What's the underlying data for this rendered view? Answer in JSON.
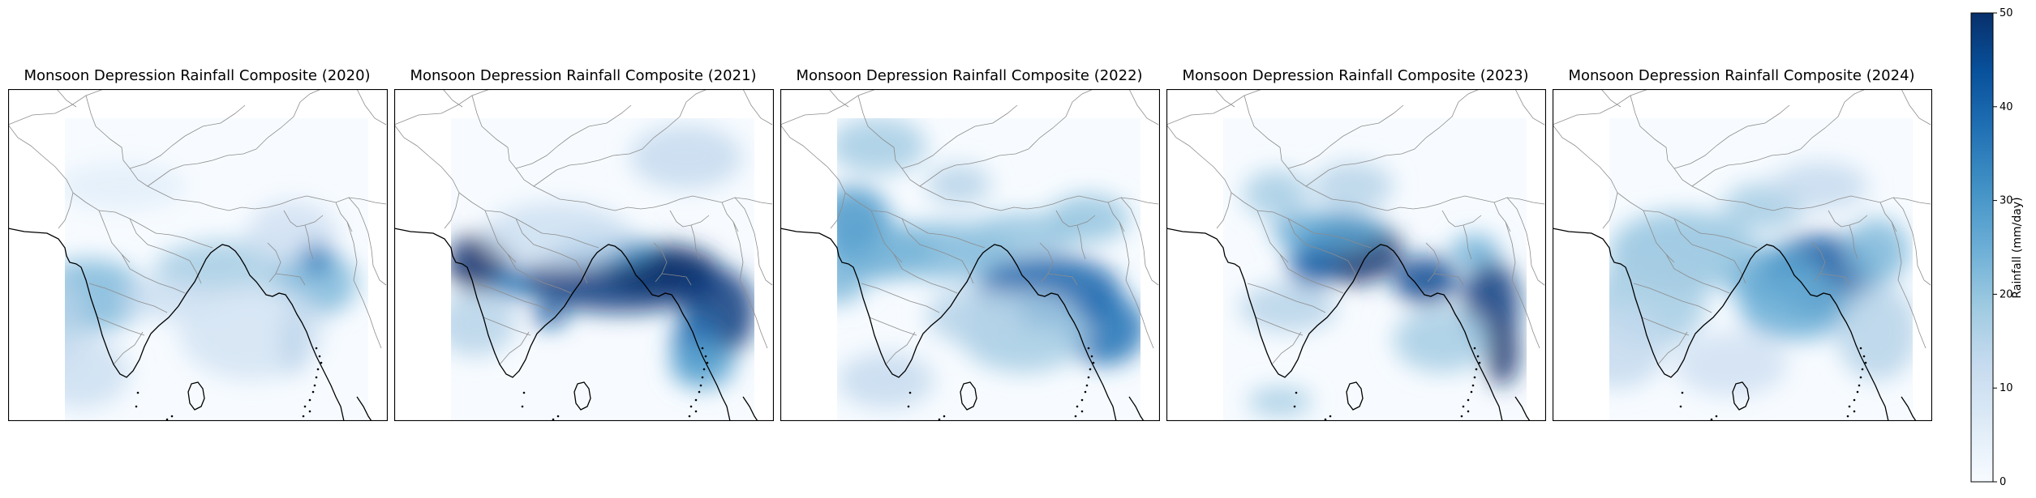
{
  "figure": {
    "panels": [
      {
        "title": "Monsoon Depression Rainfall Composite (2020)"
      },
      {
        "title": "Monsoon Depression Rainfall Composite (2021)"
      },
      {
        "title": "Monsoon Depression Rainfall Composite (2022)"
      },
      {
        "title": "Monsoon Depression Rainfall Composite (2023)"
      },
      {
        "title": "Monsoon Depression Rainfall Composite (2024)"
      }
    ],
    "colorbar": {
      "label": "Rainfall (mm/day)",
      "min": 0,
      "max": 50,
      "ticks": [
        "0",
        "10",
        "20",
        "30",
        "40",
        "50"
      ],
      "colormap": "Blues",
      "color_low": "#f7fbff",
      "color_high": "#08306b"
    }
  },
  "colors": {
    "coastline": "#000000",
    "borders": "#8c8c8c",
    "frame": "#000000"
  }
}
